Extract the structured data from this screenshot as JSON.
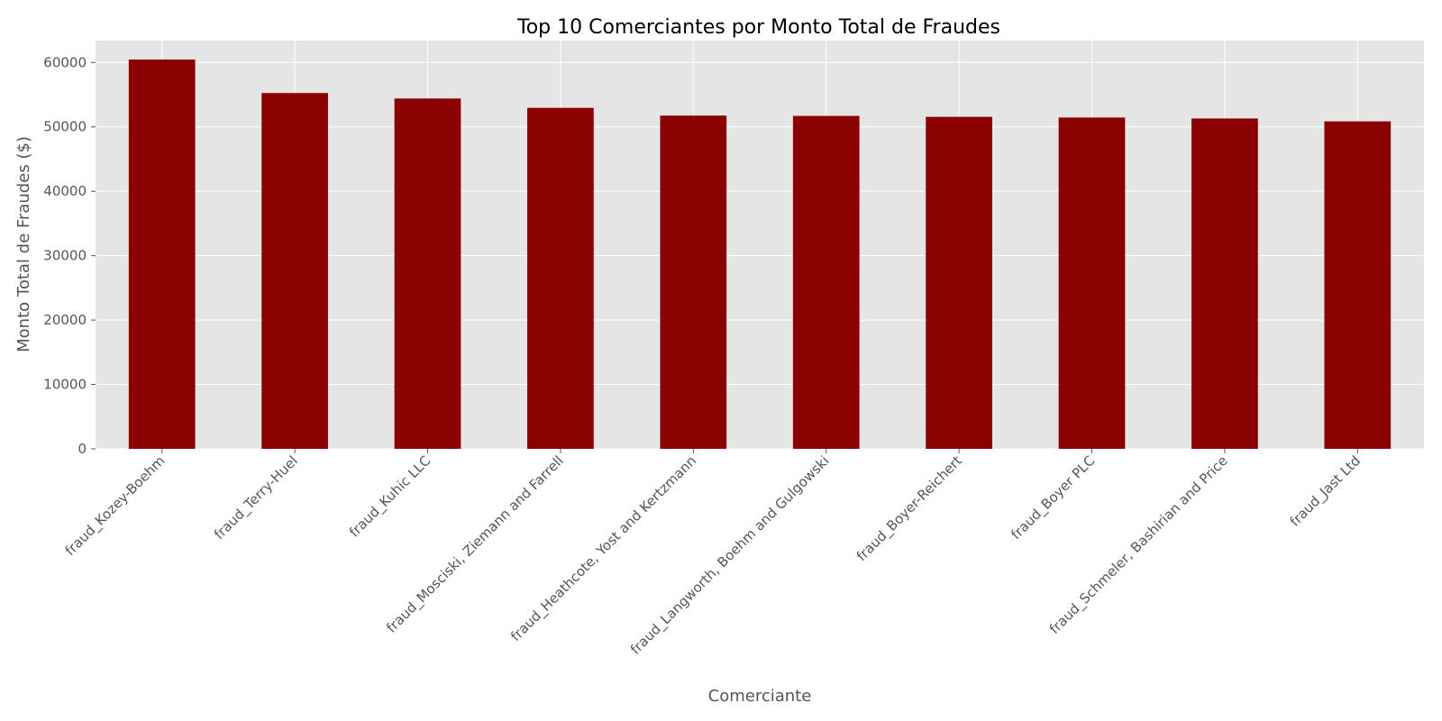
{
  "chart_data": {
    "type": "bar",
    "title": "Top 10 Comerciantes por Monto Total de Fraudes",
    "xlabel": "Comerciante",
    "ylabel": "Monto Total de Fraudes ($)",
    "categories": [
      "fraud_Kozey-Boehm",
      "fraud_Terry-Huel",
      "fraud_Kuhic LLC",
      "fraud_Mosciski, Ziemann and Farrell",
      "fraud_Heathcote, Yost and Kertzmann",
      "fraud_Langworth, Boehm and Gulgowski",
      "fraud_Boyer-Reichert",
      "fraud_Boyer PLC",
      "fraud_Schmeler, Bashirian and Price",
      "fraud_Jast Ltd"
    ],
    "values": [
      60450,
      55250,
      54400,
      52950,
      51750,
      51700,
      51550,
      51450,
      51300,
      50850
    ],
    "ylim": [
      0,
      63400
    ],
    "yticks": [
      0,
      10000,
      20000,
      30000,
      40000,
      50000,
      60000
    ],
    "grid": true,
    "legend": "none",
    "colors": {
      "bar": "#8b0000",
      "plot_background": "#e5e5e5",
      "grid": "#ffffff"
    }
  }
}
